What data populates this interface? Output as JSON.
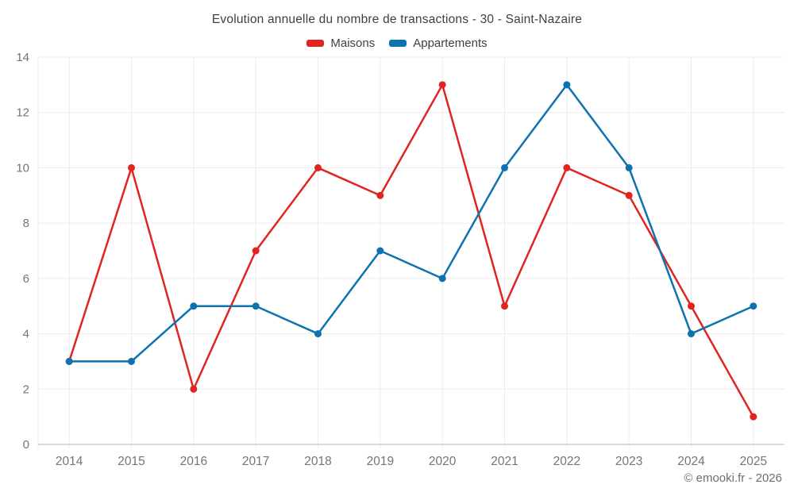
{
  "title": "Evolution annuelle du nombre de transactions - 30 - Saint-Nazaire",
  "copyright": "© emooki.fr - 2026",
  "colors": {
    "maisons": "#e02521",
    "appartements": "#0f72b0",
    "grid": "#ececec",
    "axis": "#cfcfcf",
    "tick_label": "#757575",
    "title_text": "#3f3f3f"
  },
  "chart_data": {
    "type": "line",
    "x": [
      "2014",
      "2015",
      "2016",
      "2017",
      "2018",
      "2019",
      "2020",
      "2021",
      "2022",
      "2023",
      "2024",
      "2025"
    ],
    "series": [
      {
        "name": "Maisons",
        "color": "#e02521",
        "values": [
          3,
          10,
          2,
          7,
          10,
          9,
          13,
          5,
          10,
          9,
          5,
          1
        ]
      },
      {
        "name": "Appartements",
        "color": "#0f72b0",
        "values": [
          3,
          3,
          5,
          5,
          4,
          7,
          6,
          10,
          13,
          10,
          4,
          5
        ]
      }
    ],
    "title": "Evolution annuelle du nombre de transactions - 30 - Saint-Nazaire",
    "xlabel": "",
    "ylabel": "",
    "ylim": [
      0,
      14
    ],
    "ytick_step": 2,
    "grid": true,
    "legend_position": "top",
    "marker": "circle"
  }
}
